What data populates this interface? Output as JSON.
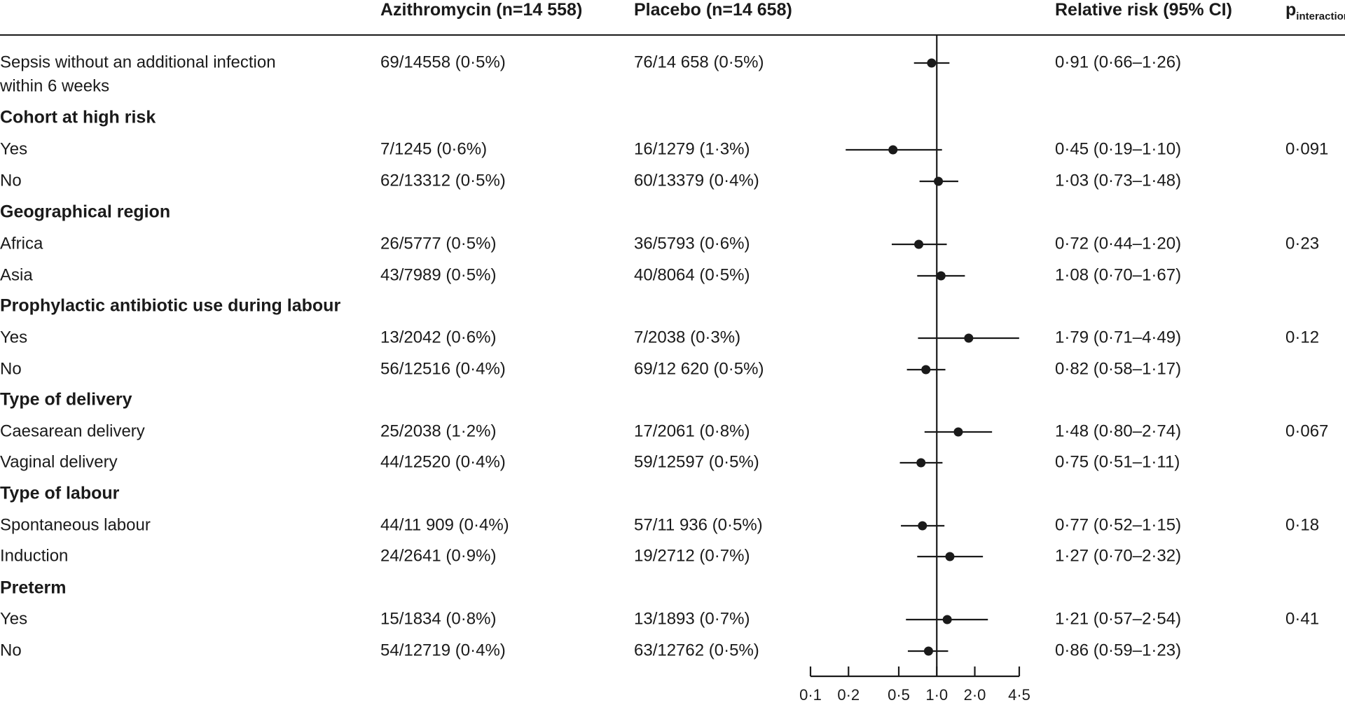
{
  "chart_data": {
    "type": "forest",
    "headers": {
      "azithromycin": "Azithromycin (n=14 558)",
      "placebo": "Placebo (n=14 658)",
      "relative_risk": "Relative risk (95% CI)",
      "p_main": "p",
      "p_sub": "interaction"
    },
    "x_scale": "log",
    "xlim": [
      0.1,
      4.5
    ],
    "reference_line": 1.0,
    "x_ticks": [
      {
        "value": 0.1,
        "label": "0·1"
      },
      {
        "value": 0.2,
        "label": "0·2"
      },
      {
        "value": 0.5,
        "label": "0·5"
      },
      {
        "value": 1.0,
        "label": "1·0"
      },
      {
        "value": 2.0,
        "label": "2·0"
      },
      {
        "value": 4.5,
        "label": "4·5"
      }
    ],
    "rows": [
      {
        "kind": "item",
        "label_lines": [
          "Sepsis without an additional infection",
          "within 6 weeks"
        ],
        "azithro": "69/14558 (0·5%)",
        "placebo": "76/14 658 (0·5%)",
        "rr_text": "0·91 (0·66–1·26)",
        "p": "",
        "rr": 0.91,
        "lo": 0.66,
        "hi": 1.26
      },
      {
        "kind": "group",
        "label": "Cohort at high risk"
      },
      {
        "kind": "item",
        "label_lines": [
          "Yes"
        ],
        "azithro": "7/1245 (0·6%)",
        "placebo": "16/1279 (1·3%)",
        "rr_text": "0·45 (0·19–1·10)",
        "p": "0·091",
        "rr": 0.45,
        "lo": 0.19,
        "hi": 1.1
      },
      {
        "kind": "item",
        "label_lines": [
          "No"
        ],
        "azithro": "62/13312 (0·5%)",
        "placebo": "60/13379 (0·4%)",
        "rr_text": "1·03 (0·73–1·48)",
        "p": "",
        "rr": 1.03,
        "lo": 0.73,
        "hi": 1.48
      },
      {
        "kind": "group",
        "label": "Geographical region"
      },
      {
        "kind": "item",
        "label_lines": [
          "Africa"
        ],
        "azithro": "26/5777 (0·5%)",
        "placebo": "36/5793 (0·6%)",
        "rr_text": "0·72 (0·44–1·20)",
        "p": "0·23",
        "rr": 0.72,
        "lo": 0.44,
        "hi": 1.2
      },
      {
        "kind": "item",
        "label_lines": [
          "Asia"
        ],
        "azithro": "43/7989 (0·5%)",
        "placebo": "40/8064 (0·5%)",
        "rr_text": "1·08 (0·70–1·67)",
        "p": "",
        "rr": 1.08,
        "lo": 0.7,
        "hi": 1.67
      },
      {
        "kind": "group",
        "label": "Prophylactic antibiotic use during labour"
      },
      {
        "kind": "item",
        "label_lines": [
          "Yes"
        ],
        "azithro": "13/2042 (0·6%)",
        "placebo": "7/2038 (0·3%)",
        "rr_text": "1·79 (0·71–4·49)",
        "p": "0·12",
        "rr": 1.79,
        "lo": 0.71,
        "hi": 4.49
      },
      {
        "kind": "item",
        "label_lines": [
          "No"
        ],
        "azithro": "56/12516 (0·4%)",
        "placebo": "69/12 620 (0·5%)",
        "rr_text": "0·82 (0·58–1·17)",
        "p": "",
        "rr": 0.82,
        "lo": 0.58,
        "hi": 1.17
      },
      {
        "kind": "group",
        "label": "Type of delivery"
      },
      {
        "kind": "item",
        "label_lines": [
          "Caesarean delivery"
        ],
        "azithro": "25/2038 (1·2%)",
        "placebo": "17/2061 (0·8%)",
        "rr_text": "1·48 (0·80–2·74)",
        "p": "0·067",
        "rr": 1.48,
        "lo": 0.8,
        "hi": 2.74
      },
      {
        "kind": "item",
        "label_lines": [
          "Vaginal delivery"
        ],
        "azithro": "44/12520 (0·4%)",
        "placebo": "59/12597 (0·5%)",
        "rr_text": "0·75 (0·51–1·11)",
        "p": "",
        "rr": 0.75,
        "lo": 0.51,
        "hi": 1.11
      },
      {
        "kind": "group",
        "label": "Type of labour"
      },
      {
        "kind": "item",
        "label_lines": [
          "Spontaneous labour"
        ],
        "azithro": "44/11 909 (0·4%)",
        "placebo": "57/11 936 (0·5%)",
        "rr_text": "0·77 (0·52–1·15)",
        "p": "0·18",
        "rr": 0.77,
        "lo": 0.52,
        "hi": 1.15
      },
      {
        "kind": "item",
        "label_lines": [
          "Induction"
        ],
        "azithro": "24/2641 (0·9%)",
        "placebo": "19/2712 (0·7%)",
        "rr_text": "1·27 (0·70–2·32)",
        "p": "",
        "rr": 1.27,
        "lo": 0.7,
        "hi": 2.32
      },
      {
        "kind": "group",
        "label": "Preterm"
      },
      {
        "kind": "item",
        "label_lines": [
          "Yes"
        ],
        "azithro": "15/1834 (0·8%)",
        "placebo": "13/1893 (0·7%)",
        "rr_text": "1·21 (0·57–2·54)",
        "p": "0·41",
        "rr": 1.21,
        "lo": 0.57,
        "hi": 2.54
      },
      {
        "kind": "item",
        "label_lines": [
          "No"
        ],
        "azithro": "54/12719 (0·4%)",
        "placebo": "63/12762 (0·5%)",
        "rr_text": "0·86 (0·59–1·23)",
        "p": "",
        "rr": 0.86,
        "lo": 0.59,
        "hi": 1.23
      }
    ]
  }
}
